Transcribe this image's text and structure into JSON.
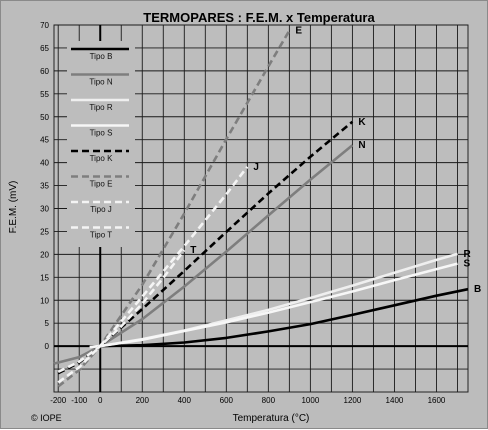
{
  "chart_data": {
    "type": "line",
    "title": "TERMOPARES : F.E.M. x Temperatura",
    "xlabel": "Temperatura (°C)",
    "ylabel": "F.E.M. (mV)",
    "xlim": [
      -220,
      1750
    ],
    "ylim": [
      -10,
      70
    ],
    "xticks": [
      -200,
      -100,
      0,
      200,
      400,
      600,
      800,
      1000,
      1200,
      1400,
      1600
    ],
    "yticks": [
      0,
      5,
      10,
      15,
      20,
      25,
      30,
      35,
      40,
      45,
      50,
      55,
      60,
      65,
      70
    ],
    "grid": true,
    "legend_position": "top-left",
    "series": [
      {
        "name": "Tipo B",
        "label": "B",
        "color": "#000000",
        "dash": "solid",
        "x": [
          0,
          200,
          400,
          600,
          800,
          1000,
          1200,
          1400,
          1600,
          1750
        ],
        "y": [
          0,
          0.2,
          0.8,
          1.8,
          3.2,
          4.8,
          6.8,
          8.9,
          11.0,
          12.4
        ]
      },
      {
        "name": "Tipo N",
        "label": "N",
        "color": "#7e7e7e",
        "dash": "solid",
        "x": [
          -220,
          -100,
          0,
          200,
          400,
          600,
          800,
          1000,
          1200
        ],
        "y": [
          -3.8,
          -2.4,
          0,
          5.9,
          13.0,
          20.6,
          28.5,
          36.3,
          43.8
        ]
      },
      {
        "name": "Tipo R",
        "label": "R",
        "color": "#efefef",
        "dash": "solid",
        "x": [
          -50,
          0,
          200,
          400,
          600,
          800,
          1000,
          1200,
          1400,
          1600,
          1700
        ],
        "y": [
          -0.2,
          0,
          1.5,
          3.4,
          5.6,
          7.9,
          10.5,
          13.2,
          16.0,
          18.8,
          20.1
        ]
      },
      {
        "name": "Tipo S",
        "label": "S",
        "color": "#f7f7f7",
        "dash": "solid",
        "x": [
          -50,
          0,
          200,
          400,
          600,
          800,
          1000,
          1200,
          1400,
          1600,
          1700
        ],
        "y": [
          -0.2,
          0,
          1.4,
          3.3,
          5.2,
          7.3,
          9.6,
          11.9,
          14.4,
          16.8,
          18.0
        ]
      },
      {
        "name": "Tipo K",
        "label": "K",
        "color": "#000000",
        "dash": "dashed",
        "x": [
          -200,
          -100,
          0,
          200,
          400,
          600,
          800,
          1000,
          1200
        ],
        "y": [
          -5.9,
          -3.6,
          0,
          8.1,
          16.4,
          24.9,
          33.3,
          41.3,
          48.9
        ]
      },
      {
        "name": "Tipo E",
        "label": "E",
        "color": "#7e7e7e",
        "dash": "dashed",
        "x": [
          -200,
          -100,
          0,
          200,
          400,
          600,
          800,
          900
        ],
        "y": [
          -8.8,
          -5.2,
          0,
          13.4,
          28.9,
          45.1,
          61.0,
          68.8
        ]
      },
      {
        "name": "Tipo J",
        "label": "J",
        "color": "#f4f4f4",
        "dash": "dashed",
        "x": [
          -200,
          -100,
          0,
          200,
          400,
          600,
          700
        ],
        "y": [
          -7.9,
          -4.6,
          0,
          10.8,
          21.8,
          33.1,
          39.1
        ]
      },
      {
        "name": "Tipo T",
        "label": "T",
        "color": "#f4f4f4",
        "dash": "dashed",
        "x": [
          -200,
          -100,
          0,
          100,
          200,
          300,
          400
        ],
        "y": [
          -5.6,
          -3.4,
          0,
          4.3,
          9.3,
          14.9,
          20.9
        ]
      }
    ]
  },
  "credit": "© IOPE"
}
